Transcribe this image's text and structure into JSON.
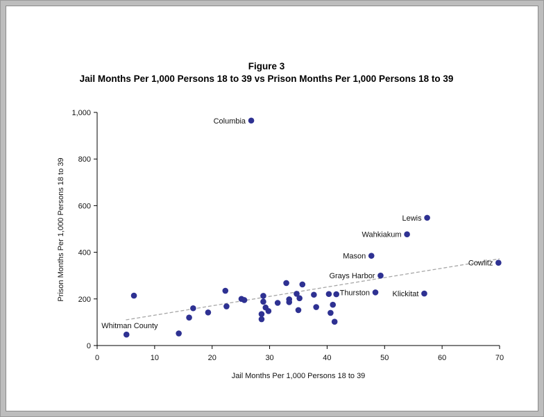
{
  "chart_data": {
    "type": "scatter",
    "title": "Figure 3",
    "subtitle": "Jail Months Per 1,000 Persons 18 to 39 vs Prison Months Per 1,000 Persons 18 to 39",
    "xlabel": "Jail Months Per 1,000 Persons 18 to 39",
    "ylabel": "Prison Months Per 1,000 Persons 18 to 39",
    "xlim": [
      0,
      70
    ],
    "ylim": [
      0,
      1000
    ],
    "x_ticks": [
      "0",
      "10",
      "20",
      "30",
      "40",
      "50",
      "60",
      "70"
    ],
    "y_ticks": [
      "0",
      "200",
      "400",
      "600",
      "800",
      "1,000"
    ],
    "grid": false,
    "marker_color": "#2e3192",
    "trendline": {
      "color": "#a6a6a6",
      "x": [
        5,
        70
      ],
      "y": [
        110,
        372
      ]
    },
    "points": [
      {
        "x": 26.8,
        "y": 965,
        "label": "Columbia"
      },
      {
        "x": 57.4,
        "y": 548,
        "label": "Lewis"
      },
      {
        "x": 53.9,
        "y": 477,
        "label": "Wahkiakum"
      },
      {
        "x": 47.7,
        "y": 385,
        "label": "Mason"
      },
      {
        "x": 69.8,
        "y": 355,
        "label": "Cowlitz"
      },
      {
        "x": 49.3,
        "y": 300,
        "label": "Grays Harbor"
      },
      {
        "x": 48.4,
        "y": 228,
        "label": "Thurston"
      },
      {
        "x": 56.9,
        "y": 223,
        "label": "Klickitat"
      },
      {
        "x": 5.1,
        "y": 47,
        "label": "Whitman County"
      },
      {
        "x": 6.4,
        "y": 214
      },
      {
        "x": 14.2,
        "y": 52
      },
      {
        "x": 16.0,
        "y": 120
      },
      {
        "x": 16.7,
        "y": 160
      },
      {
        "x": 19.3,
        "y": 142
      },
      {
        "x": 22.3,
        "y": 235
      },
      {
        "x": 22.5,
        "y": 168
      },
      {
        "x": 25.1,
        "y": 200
      },
      {
        "x": 25.6,
        "y": 195
      },
      {
        "x": 28.6,
        "y": 135
      },
      {
        "x": 28.6,
        "y": 113
      },
      {
        "x": 28.9,
        "y": 213
      },
      {
        "x": 28.9,
        "y": 188
      },
      {
        "x": 29.3,
        "y": 163
      },
      {
        "x": 29.8,
        "y": 148
      },
      {
        "x": 31.4,
        "y": 183
      },
      {
        "x": 32.9,
        "y": 268
      },
      {
        "x": 33.4,
        "y": 198
      },
      {
        "x": 33.4,
        "y": 186
      },
      {
        "x": 34.7,
        "y": 222
      },
      {
        "x": 35.2,
        "y": 203
      },
      {
        "x": 35.0,
        "y": 152
      },
      {
        "x": 35.7,
        "y": 262
      },
      {
        "x": 37.7,
        "y": 218
      },
      {
        "x": 38.1,
        "y": 165
      },
      {
        "x": 40.3,
        "y": 221
      },
      {
        "x": 40.6,
        "y": 140
      },
      {
        "x": 41.0,
        "y": 175
      },
      {
        "x": 41.6,
        "y": 220
      },
      {
        "x": 41.3,
        "y": 102
      }
    ]
  }
}
